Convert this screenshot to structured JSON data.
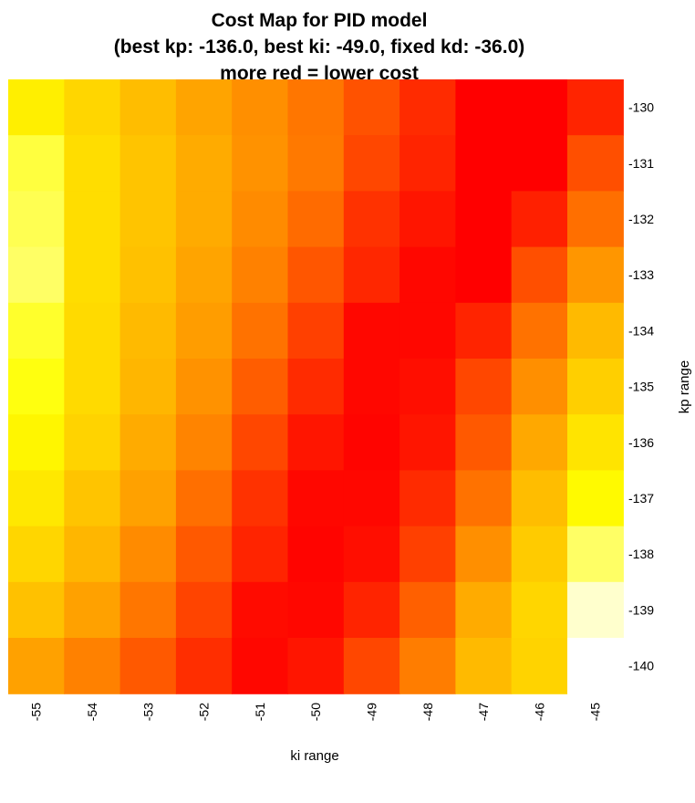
{
  "chart_data": {
    "type": "heatmap",
    "title": [
      "Cost Map for PID model",
      "(best kp: -136.0, best ki: -49.0, fixed kd: -36.0)",
      "more red = lower cost"
    ],
    "xlabel": "ki range",
    "ylabel": "kp range",
    "x_ticks": [
      "-55",
      "-54",
      "-53",
      "-52",
      "-51",
      "-50",
      "-49",
      "-48",
      "-47",
      "-46",
      "-45"
    ],
    "y_ticks": [
      "-130",
      "-131",
      "-132",
      "-133",
      "-134",
      "-135",
      "-136",
      "-137",
      "-138",
      "-139",
      "-140"
    ],
    "colorscale": [
      "#FF0000",
      "#FF3300",
      "#FF6600",
      "#FF9900",
      "#FFCC00",
      "#FFFF00",
      "#FFFF88",
      "#FFFFFF"
    ],
    "colorscale_note": "more red = lower cost",
    "levels": [
      [
        0.67,
        0.6,
        0.53,
        0.46,
        0.4,
        0.33,
        0.23,
        0.12,
        0.0,
        0.0,
        0.1
      ],
      [
        0.78,
        0.62,
        0.55,
        0.48,
        0.41,
        0.34,
        0.2,
        0.1,
        0.0,
        0.0,
        0.22
      ],
      [
        0.8,
        0.62,
        0.55,
        0.48,
        0.39,
        0.3,
        0.14,
        0.06,
        0.0,
        0.09,
        0.31
      ],
      [
        0.82,
        0.62,
        0.54,
        0.46,
        0.36,
        0.24,
        0.11,
        0.02,
        0.0,
        0.22,
        0.42
      ],
      [
        0.76,
        0.61,
        0.52,
        0.44,
        0.32,
        0.18,
        0.02,
        0.02,
        0.1,
        0.32,
        0.52
      ],
      [
        0.73,
        0.61,
        0.51,
        0.41,
        0.26,
        0.12,
        0.02,
        0.04,
        0.2,
        0.4,
        0.58
      ],
      [
        0.69,
        0.59,
        0.48,
        0.37,
        0.2,
        0.06,
        0.01,
        0.06,
        0.25,
        0.47,
        0.64
      ],
      [
        0.65,
        0.55,
        0.45,
        0.31,
        0.14,
        0.02,
        0.02,
        0.12,
        0.32,
        0.53,
        0.7
      ],
      [
        0.6,
        0.51,
        0.39,
        0.25,
        0.1,
        0.01,
        0.04,
        0.18,
        0.4,
        0.57,
        0.82
      ],
      [
        0.54,
        0.45,
        0.33,
        0.19,
        0.03,
        0.02,
        0.1,
        0.27,
        0.48,
        0.6,
        0.94
      ],
      [
        0.45,
        0.36,
        0.25,
        0.13,
        0.02,
        0.06,
        0.2,
        0.35,
        0.52,
        0.59,
        1.0
      ]
    ]
  }
}
